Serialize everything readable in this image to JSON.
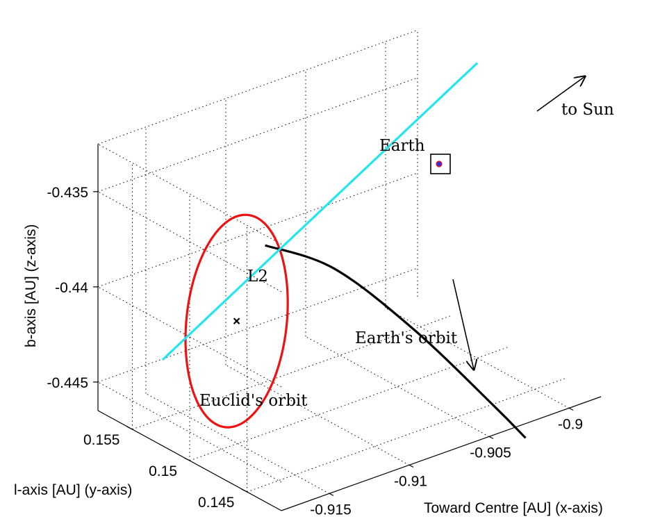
{
  "chart_data": {
    "type": "line",
    "projection": "3d",
    "grid": true,
    "axes": {
      "x": {
        "label": "Toward Centre [AU] (x-axis)",
        "ticks": [
          "-0.915",
          "-0.91",
          "-0.905",
          "-0.9"
        ],
        "range": [
          -0.918,
          -0.898
        ]
      },
      "y": {
        "label": "l-axis [AU] (y-axis)",
        "ticks": [
          "0.145",
          "0.15",
          "0.155"
        ],
        "range": [
          0.142,
          0.158
        ]
      },
      "z": {
        "label": "b-axis [AU] (z-axis)",
        "ticks": [
          "-0.445",
          "-0.44",
          "-0.435"
        ],
        "range": [
          -0.4465,
          -0.4325
        ]
      }
    },
    "series": [
      {
        "name": "Euclid's orbit",
        "color": "#ee1111",
        "kind": "ellipse",
        "centre": {
          "x": -0.9142,
          "y": 0.1512,
          "z": -0.4407
        },
        "radius_x": 0.0032,
        "radius_z": 0.0055
      },
      {
        "name": "Earth's orbit",
        "color": "#000000",
        "points": [
          {
            "x": -0.9183,
            "y": 0.143,
            "z": -0.4328
          },
          {
            "x": -0.914,
            "y": 0.143,
            "z": -0.4353
          },
          {
            "x": -0.909,
            "y": 0.143,
            "z": -0.44
          },
          {
            "x": -0.904,
            "y": 0.143,
            "z": -0.4455
          },
          {
            "x": -0.902,
            "y": 0.143,
            "z": -0.4478
          }
        ]
      },
      {
        "name": "to Sun",
        "color": "#22e5ee",
        "points": [
          {
            "x": -0.9197,
            "y": 0.15,
            "z": -0.4407
          },
          {
            "x": -0.9,
            "y": 0.15,
            "z": -0.431
          }
        ]
      }
    ],
    "annotations": [
      {
        "text": "L2",
        "marker": "x"
      },
      {
        "text": "Earth",
        "marker": "square"
      },
      {
        "text": "Earth's orbit",
        "marker": "arrow"
      },
      {
        "text": "Euclid's orbit"
      },
      {
        "text": "to Sun",
        "marker": "arrow"
      }
    ]
  }
}
